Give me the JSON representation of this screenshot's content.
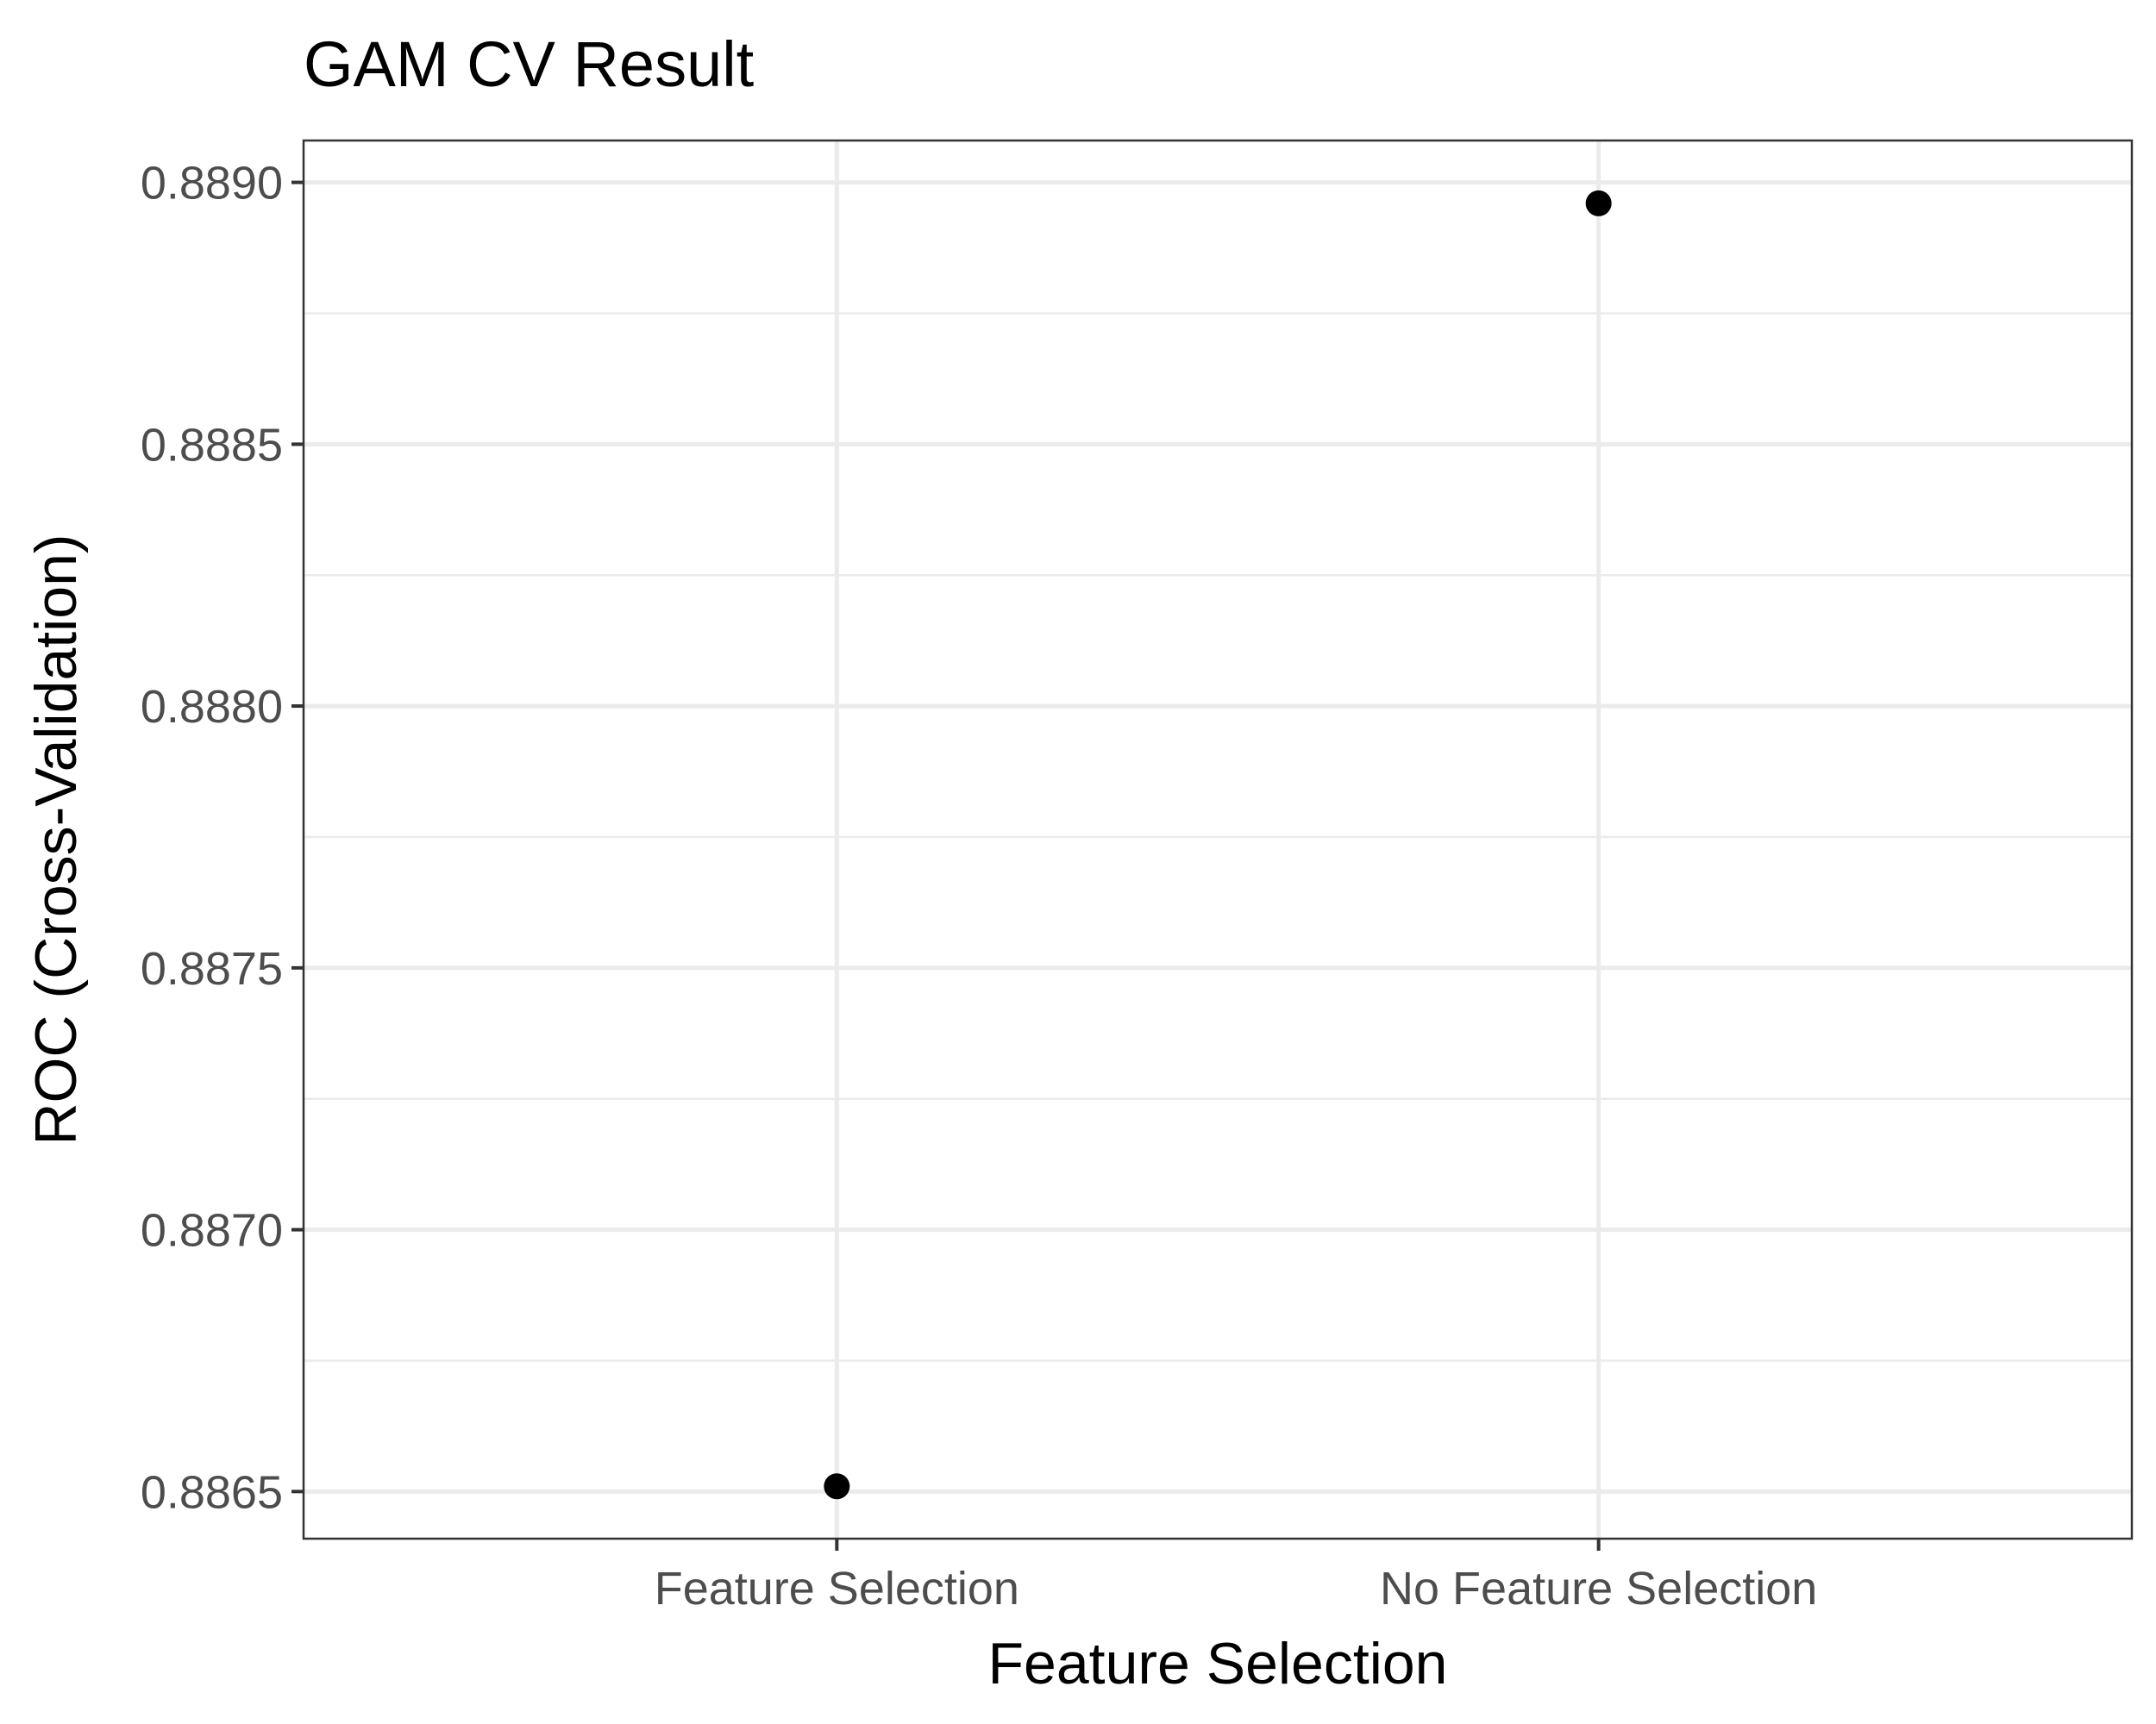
{
  "chart_data": {
    "type": "scatter",
    "title": "GAM CV Result",
    "xlabel": "Feature Selection",
    "ylabel": "ROC (Cross-Validation)",
    "categories": [
      "Feature Selection",
      "No Feature Selection"
    ],
    "values": [
      0.88651,
      0.88896
    ],
    "ylim": [
      0.88641,
      0.88908
    ],
    "y_major_ticks": [
      0.8865,
      0.887,
      0.8875,
      0.888,
      0.8885,
      0.889
    ],
    "y_tick_labels": [
      "0.8865",
      "0.8870",
      "0.8875",
      "0.8880",
      "0.8885",
      "0.8890"
    ],
    "y_minor_ticks": [
      0.88675,
      0.88725,
      0.88775,
      0.88825,
      0.88875
    ],
    "grid": true,
    "legend": "none",
    "point_color": "#000000"
  }
}
